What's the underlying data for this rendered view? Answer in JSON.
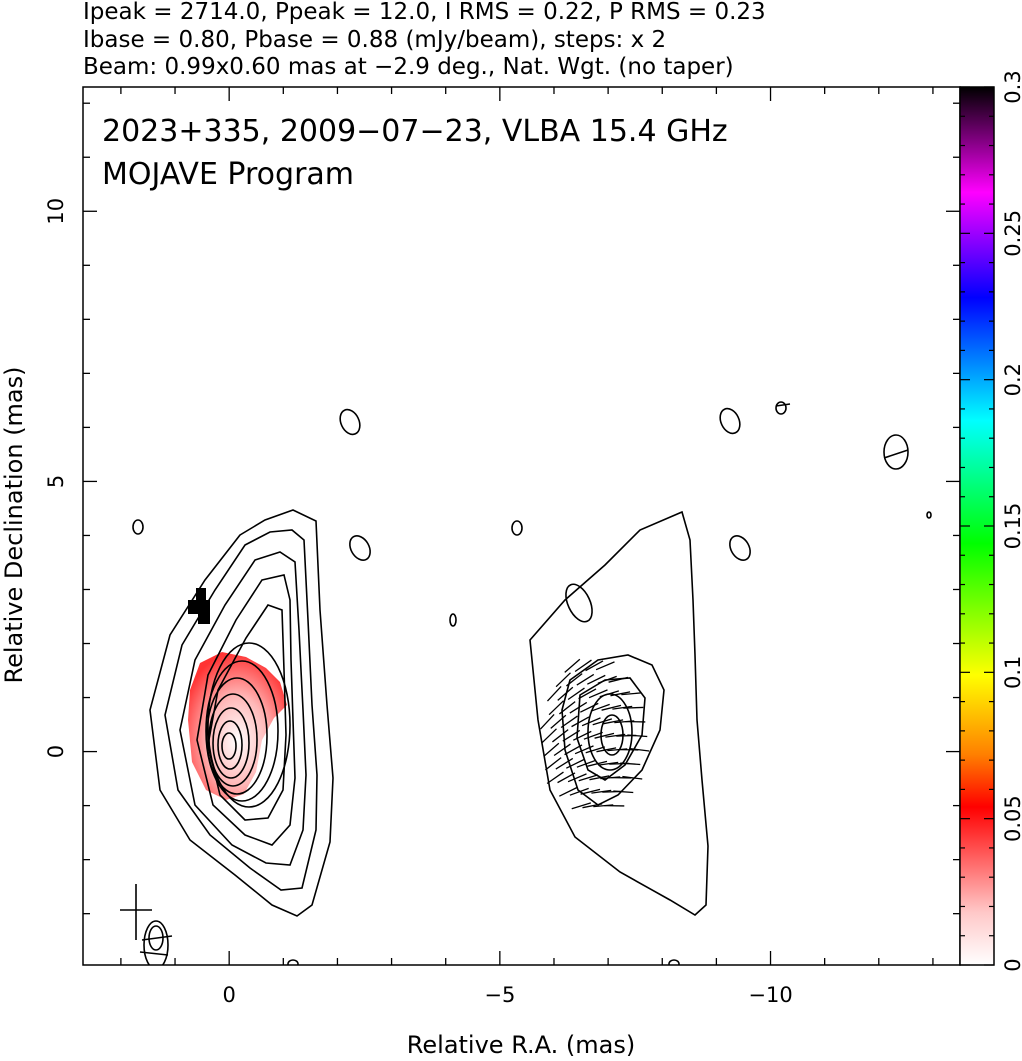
{
  "header": {
    "line1": "Ipeak = 2714.0, Ppeak = 12.0, I RMS = 0.22, P RMS = 0.23",
    "line2": "Ibase = 0.80, Pbase = 0.88 (mJy/beam), steps: x 2",
    "line3": "Beam: 0.99x0.60 mas at −2.9 deg., Nat. Wgt. (no taper)"
  },
  "chart_data": {
    "type": "heatmap",
    "title": "2023+335, 2009−07−23, VLBA 15.4 GHz",
    "subtitle": "MOJAVE Program",
    "xlabel": "Relative R.A. (mas)",
    "ylabel": "Relative Declination (mas)",
    "xlim": [
      2.7,
      -13.5
    ],
    "ylim": [
      -3.95,
      12.3
    ],
    "x_ticks": [
      {
        "v": 0,
        "label": "0"
      },
      {
        "v": -5,
        "label": "−5"
      },
      {
        "v": -10,
        "label": "−10"
      }
    ],
    "y_ticks": [
      {
        "v": 0,
        "label": "0"
      },
      {
        "v": 5,
        "label": "5"
      },
      {
        "v": 10,
        "label": "10"
      }
    ],
    "stokes_I_contour_levels_mJy_per_beam": [
      0.8,
      1.6,
      3.2,
      6.4,
      12.8,
      25.6,
      51.2,
      102.4,
      204.8,
      409.6,
      819.2,
      1638.4
    ],
    "polarized_flux_contour_levels_mJy_per_beam": [
      0.88,
      1.76,
      3.52,
      7.04
    ],
    "fractional_polarization_colorbar": {
      "range": [
        0,
        0.3
      ],
      "ticks": [
        {
          "v": 0,
          "label": "0"
        },
        {
          "v": 0.05,
          "label": "0.05"
        },
        {
          "v": 0.1,
          "label": "0.1"
        },
        {
          "v": 0.15,
          "label": "0.15"
        },
        {
          "v": 0.2,
          "label": "0.2"
        },
        {
          "v": 0.25,
          "label": "0.25"
        },
        {
          "v": 0.3,
          "label": "0.3"
        }
      ],
      "colors": [
        "#ffffff",
        "#ffc8c8",
        "#ff6464",
        "#ff0000",
        "#ff8000",
        "#ffff00",
        "#00ff00",
        "#00ffff",
        "#0000ff",
        "#ff00ff",
        "#000000"
      ]
    },
    "core_position_mas": [
      0.0,
      0.0
    ],
    "polarized_component_center_mas": [
      -6.8,
      0.2
    ],
    "beam": {
      "major_mas": 0.99,
      "minor_mas": 0.6,
      "pa_deg": -2.9
    }
  }
}
